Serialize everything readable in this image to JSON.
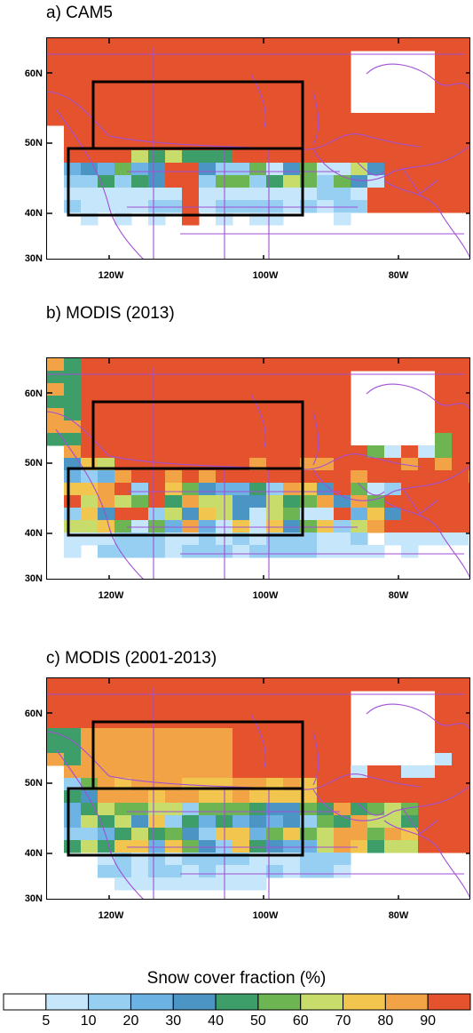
{
  "panels": [
    {
      "title": "a) CAM5"
    },
    {
      "title": "b) MODIS (2013)"
    },
    {
      "title": "c) MODIS (2001-2013)"
    }
  ],
  "axes": {
    "lat_ticks": [
      "60N",
      "50N",
      "40N",
      "30N"
    ],
    "lon_ticks": [
      "120W",
      "100W",
      "80W"
    ]
  },
  "colorbar": {
    "title": "Snow cover fraction (%)",
    "labels": [
      "5",
      "10",
      "20",
      "30",
      "40",
      "50",
      "60",
      "70",
      "80",
      "90"
    ],
    "colors": [
      "#ffffff",
      "#c6e7fb",
      "#97cff2",
      "#6cb3e4",
      "#4a95c4",
      "#3e9e6a",
      "#6db552",
      "#c7dc6a",
      "#f2c54f",
      "#f1a346",
      "#e4532d"
    ]
  },
  "colors": {
    "boundary": "#a14fd6",
    "box": "#000000"
  }
}
